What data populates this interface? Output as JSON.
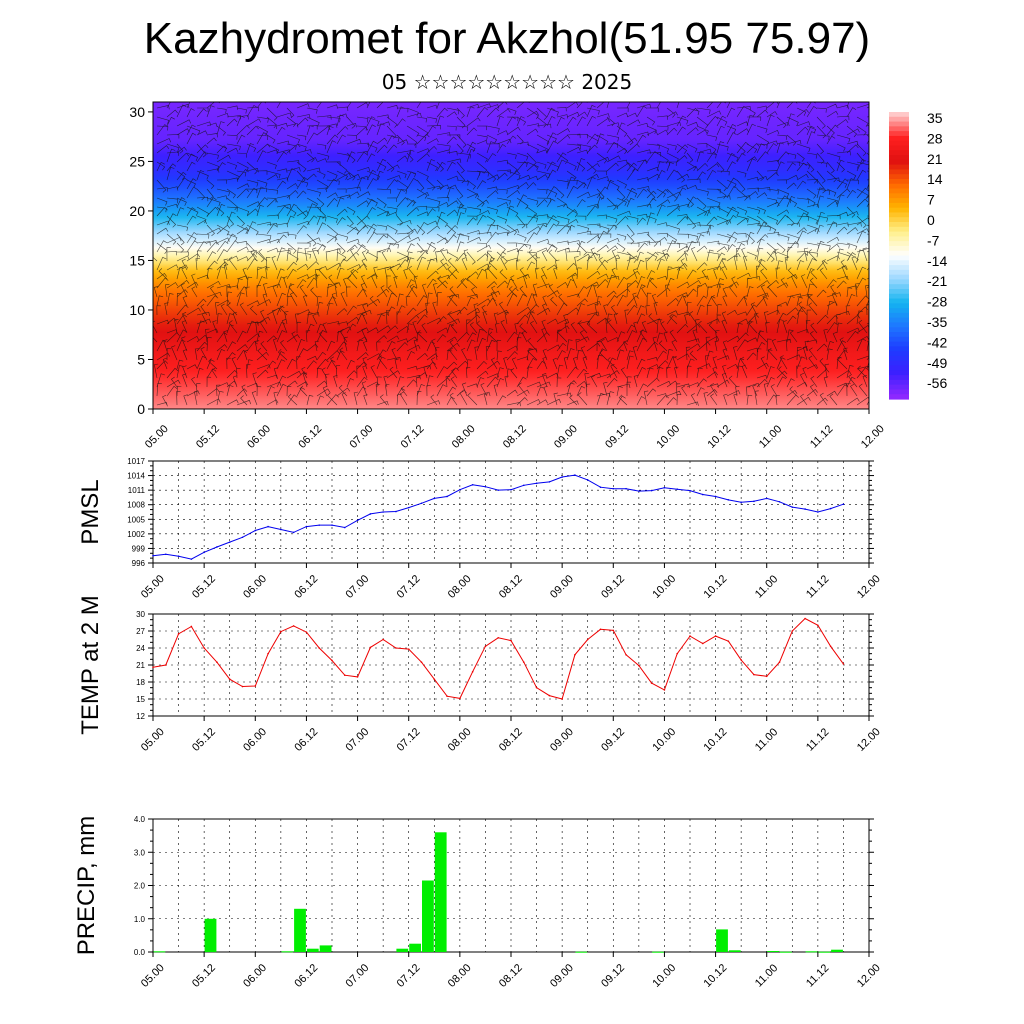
{
  "header": {
    "title": "Kazhydromet for Akzhol(51.95 75.97)",
    "subtitle": "05 ☆☆☆☆☆☆☆☆☆ 2025"
  },
  "colors": {
    "pmsl_line": "#0000ee",
    "temp_line": "#ee0000",
    "precip_bar": "#00ee00",
    "cross_section_ramp": [
      "#ffc8c8",
      "#ff2020",
      "#e01010",
      "#ff6a00",
      "#ffb400",
      "#fff08c",
      "#ffffff",
      "#9cd8ff",
      "#14b4f0",
      "#1e78ff",
      "#1e3cff",
      "#3c20ff",
      "#8c28ff"
    ]
  },
  "chart_data": [
    {
      "type": "heatmap",
      "id": "cross-section",
      "ylim": [
        0,
        31
      ],
      "y_ticks": [
        "0",
        "5",
        "10",
        "15",
        "20",
        "25",
        "30"
      ],
      "x_ticks": [
        "05.00",
        "05.12",
        "06.00",
        "06.12",
        "07.00",
        "07.12",
        "08.00",
        "08.12",
        "09.00",
        "09.12",
        "10.00",
        "10.12",
        "11.00",
        "11.12",
        "12.00"
      ],
      "colorbar_labels": [
        "35",
        "28",
        "21",
        "14",
        "7",
        "0",
        "-7",
        "-14",
        "-21",
        "-28",
        "-35",
        "-42",
        "-49",
        "-56"
      ],
      "wind_barbs": true,
      "temperature_profile": {
        "levels": [
          0,
          3,
          6,
          9,
          12,
          14,
          16,
          17,
          19,
          21,
          24,
          27,
          31
        ],
        "values": [
          32,
          28,
          23,
          17,
          10,
          2,
          -10,
          -16,
          -26,
          -36,
          -48,
          -56,
          -58
        ]
      }
    },
    {
      "type": "line",
      "id": "pmsl",
      "ylabel": "PMSL",
      "ylim": [
        996,
        1017
      ],
      "y_ticks": [
        "996",
        "999",
        "1002",
        "1005",
        "1008",
        "1011",
        "1014",
        "1017"
      ],
      "x_ticks": [
        "05.00",
        "05.12",
        "06.00",
        "06.12",
        "07.00",
        "07.12",
        "08.00",
        "08.12",
        "09.00",
        "09.12",
        "10.00",
        "10.12",
        "11.00",
        "11.12",
        "12.00"
      ],
      "x_range": [
        0,
        168
      ],
      "series": [
        {
          "x": [
            0,
            3,
            6,
            9,
            12,
            15,
            18,
            21,
            24,
            27,
            30,
            33,
            36,
            39,
            42,
            45,
            48,
            51,
            54,
            57,
            60,
            63,
            66,
            69,
            72,
            75,
            78,
            81,
            84,
            87,
            90,
            93,
            96,
            99,
            102,
            105,
            108,
            111,
            114,
            117,
            120,
            123,
            126,
            129,
            132,
            135,
            138,
            141,
            144,
            147,
            150,
            153,
            156,
            159,
            162
          ],
          "values": [
            997.5,
            997.8,
            997.4,
            996.8,
            998.2,
            999.3,
            1000.3,
            1001.3,
            1002.7,
            1003.5,
            1002.9,
            1002.3,
            1003.5,
            1003.8,
            1003.8,
            1003.3,
            1004.8,
            1006.1,
            1006.5,
            1006.6,
            1007.4,
            1008.3,
            1009.3,
            1009.7,
            1011.1,
            1012.1,
            1011.7,
            1011.0,
            1011.1,
            1012.0,
            1012.4,
            1012.7,
            1013.7,
            1014.1,
            1013.1,
            1011.6,
            1011.3,
            1011.3,
            1010.8,
            1010.9,
            1011.5,
            1011.2,
            1010.9,
            1010.1,
            1009.7,
            1009.0,
            1008.5,
            1008.7,
            1009.3,
            1008.6,
            1007.5,
            1007.1,
            1006.5,
            1007.2,
            1008.1
          ]
        }
      ]
    },
    {
      "type": "line",
      "id": "temp2m",
      "ylabel": "TEMP at 2 M",
      "ylim": [
        12,
        30
      ],
      "y_ticks": [
        "12",
        "15",
        "18",
        "21",
        "24",
        "27",
        "30"
      ],
      "x_ticks": [
        "05.00",
        "05.12",
        "06.00",
        "06.12",
        "07.00",
        "07.12",
        "08.00",
        "08.12",
        "09.00",
        "09.12",
        "10.00",
        "10.12",
        "11.00",
        "11.12",
        "12.00"
      ],
      "x_range": [
        0,
        168
      ],
      "series": [
        {
          "x": [
            0,
            3,
            6,
            9,
            12,
            15,
            18,
            21,
            24,
            27,
            30,
            33,
            36,
            39,
            42,
            45,
            48,
            51,
            54,
            57,
            60,
            63,
            66,
            69,
            72,
            75,
            78,
            81,
            84,
            87,
            90,
            93,
            96,
            99,
            102,
            105,
            108,
            111,
            114,
            117,
            120,
            123,
            126,
            129,
            132,
            135,
            138,
            141,
            144,
            147,
            150,
            153,
            156,
            159,
            162
          ],
          "values": [
            20.6,
            21.0,
            26.5,
            27.8,
            24.0,
            21.5,
            18.5,
            17.2,
            17.3,
            23.0,
            26.9,
            27.9,
            26.8,
            24.0,
            21.8,
            19.2,
            18.9,
            24.1,
            25.5,
            24.0,
            23.8,
            21.5,
            18.5,
            15.5,
            15.1,
            19.8,
            24.3,
            25.8,
            25.3,
            21.5,
            17.0,
            15.6,
            15.0,
            22.8,
            25.5,
            27.3,
            27.1,
            22.8,
            20.9,
            17.8,
            16.6,
            23.0,
            26.1,
            24.8,
            26.1,
            25.2,
            21.9,
            19.3,
            19.0,
            21.5,
            27.0,
            29.2,
            28.0,
            24.3,
            21.2
          ]
        }
      ]
    },
    {
      "type": "bar",
      "id": "precip",
      "ylabel": "PRECIP, mm",
      "ylim": [
        0,
        4
      ],
      "y_ticks": [
        "0.0",
        "1.0",
        "2.0",
        "3.0",
        "4.0"
      ],
      "x_ticks": [
        "05.00",
        "05.12",
        "06.00",
        "06.12",
        "07.00",
        "07.12",
        "08.00",
        "08.12",
        "09.00",
        "09.12",
        "10.00",
        "10.12",
        "11.00",
        "11.12",
        "12.00"
      ],
      "x_range": [
        0,
        168
      ],
      "bar_width_hours": 3,
      "x": [
        0,
        3,
        6,
        9,
        12,
        15,
        18,
        21,
        24,
        27,
        30,
        33,
        36,
        39,
        42,
        45,
        48,
        51,
        54,
        57,
        60,
        63,
        66,
        69,
        72,
        75,
        78,
        81,
        84,
        87,
        90,
        93,
        96,
        99,
        102,
        105,
        108,
        111,
        114,
        117,
        120,
        123,
        126,
        129,
        132,
        135,
        138,
        141,
        144,
        147,
        150,
        153,
        156,
        159,
        162,
        165
      ],
      "values": [
        0.02,
        0,
        0,
        0,
        1.0,
        0,
        0,
        0,
        0,
        0,
        0.02,
        1.3,
        0.1,
        0.2,
        0,
        0,
        0,
        0,
        0,
        0.1,
        0.25,
        2.15,
        3.6,
        0,
        0,
        0,
        0,
        0,
        0,
        0,
        0,
        0,
        0,
        0.01,
        0,
        0,
        0,
        0,
        0,
        0.01,
        0,
        0,
        0,
        0,
        0.68,
        0.05,
        0,
        0,
        0.03,
        0.01,
        0,
        0.02,
        0.01,
        0.07,
        0,
        0
      ]
    }
  ]
}
